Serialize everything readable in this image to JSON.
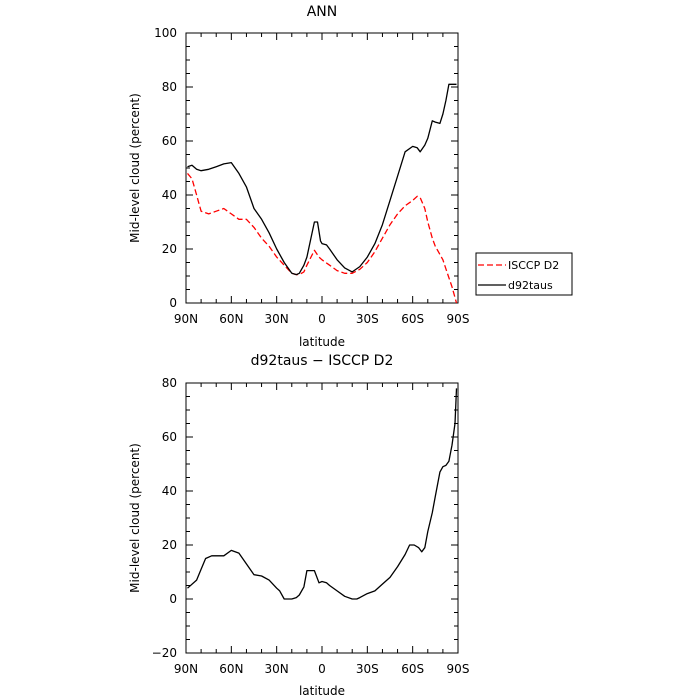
{
  "chart_data": [
    {
      "type": "line",
      "title": "ANN",
      "xlabel": "latitude",
      "ylabel": "Mid-level cloud (percent)",
      "xlim": [
        90,
        -90
      ],
      "ylim": [
        0,
        100
      ],
      "x_tick_labels": [
        "90N",
        "60N",
        "30N",
        "0",
        "30S",
        "60S",
        "90S"
      ],
      "y_tick_labels": [
        "0",
        "20",
        "40",
        "60",
        "80",
        "100"
      ],
      "legend_position": "right",
      "series": [
        {
          "name": "ISCCP D2",
          "color": "#ff0000",
          "style": "dashed",
          "x": [
            89,
            86,
            83,
            80,
            75,
            70,
            65,
            60,
            55,
            50,
            45,
            40,
            35,
            30,
            25,
            20,
            17,
            15,
            12,
            10,
            5,
            2,
            0,
            -5,
            -10,
            -15,
            -20,
            -25,
            -30,
            -35,
            -40,
            -45,
            -50,
            -55,
            -60,
            -63,
            -65,
            -68,
            -70,
            -73,
            -75,
            -78,
            -80,
            -83,
            -86,
            -88,
            -89
          ],
          "y": [
            48,
            46,
            40,
            34,
            33,
            34,
            35,
            33,
            31,
            31,
            28,
            24,
            21,
            17,
            14,
            11,
            10.5,
            10.5,
            11.5,
            14,
            19.5,
            17,
            16,
            14,
            12,
            11,
            11,
            12.5,
            15,
            19,
            24,
            29,
            33,
            36,
            38,
            39.5,
            39,
            35,
            30,
            24,
            21,
            18,
            16,
            11,
            6,
            2,
            0
          ]
        },
        {
          "name": "d92taus",
          "color": "#000000",
          "style": "solid",
          "x": [
            89,
            86,
            83,
            80,
            75,
            70,
            65,
            60,
            55,
            50,
            45,
            40,
            35,
            30,
            25,
            20,
            17,
            15,
            12,
            10,
            5,
            3,
            1,
            0,
            -3,
            -5,
            -10,
            -15,
            -20,
            -25,
            -30,
            -35,
            -40,
            -45,
            -50,
            -55,
            -60,
            -63,
            -65,
            -68,
            -70,
            -73,
            -75,
            -78,
            -80,
            -82,
            -84,
            -86,
            -88,
            -89
          ],
          "y": [
            50.5,
            51,
            49.5,
            49,
            49.5,
            50.5,
            51.5,
            52,
            48,
            43,
            35,
            31,
            26,
            20,
            15,
            11,
            10.5,
            11,
            14,
            17,
            30,
            30,
            23,
            22,
            21.5,
            20,
            16,
            13,
            11.5,
            13.5,
            17,
            22,
            29,
            38,
            47,
            56,
            58,
            57.5,
            56,
            58.5,
            61,
            67.5,
            67,
            66.5,
            70,
            75,
            81,
            81,
            81,
            81
          ]
        }
      ]
    },
    {
      "type": "line",
      "title": "d92taus − ISCCP D2",
      "xlabel": "latitude",
      "ylabel": "Mid-level cloud (percent)",
      "xlim": [
        90,
        -90
      ],
      "ylim": [
        -20,
        80
      ],
      "x_tick_labels": [
        "90N",
        "60N",
        "30N",
        "0",
        "30S",
        "60S",
        "90S"
      ],
      "y_tick_labels": [
        "−20",
        "0",
        "20",
        "40",
        "60",
        "80"
      ],
      "series": [
        {
          "color": "#000000",
          "style": "solid",
          "x": [
            89,
            83,
            80,
            77,
            73,
            70,
            65,
            60,
            55,
            50,
            45,
            40,
            35,
            30,
            28,
            25,
            20,
            17,
            15,
            12,
            10,
            5,
            2,
            0,
            -3,
            -5,
            -10,
            -15,
            -20,
            -23,
            -25,
            -30,
            -35,
            -40,
            -45,
            -50,
            -55,
            -58,
            -61,
            -64,
            -66,
            -68,
            -70,
            -73,
            -75,
            -78,
            -80,
            -82,
            -84,
            -86,
            -88,
            -89
          ],
          "y": [
            4,
            7,
            11,
            15,
            16,
            16,
            16,
            18,
            17,
            13,
            9,
            8.5,
            7,
            4,
            3,
            0,
            0,
            0.5,
            1.5,
            4.5,
            10.5,
            10.5,
            6,
            6.5,
            6,
            5,
            3,
            1,
            0,
            0,
            0.5,
            2,
            3,
            5.5,
            8,
            12,
            16.5,
            20,
            20,
            19,
            17.5,
            19,
            25,
            32,
            38,
            47,
            49,
            49.5,
            51,
            57,
            65,
            78
          ]
        }
      ]
    }
  ]
}
